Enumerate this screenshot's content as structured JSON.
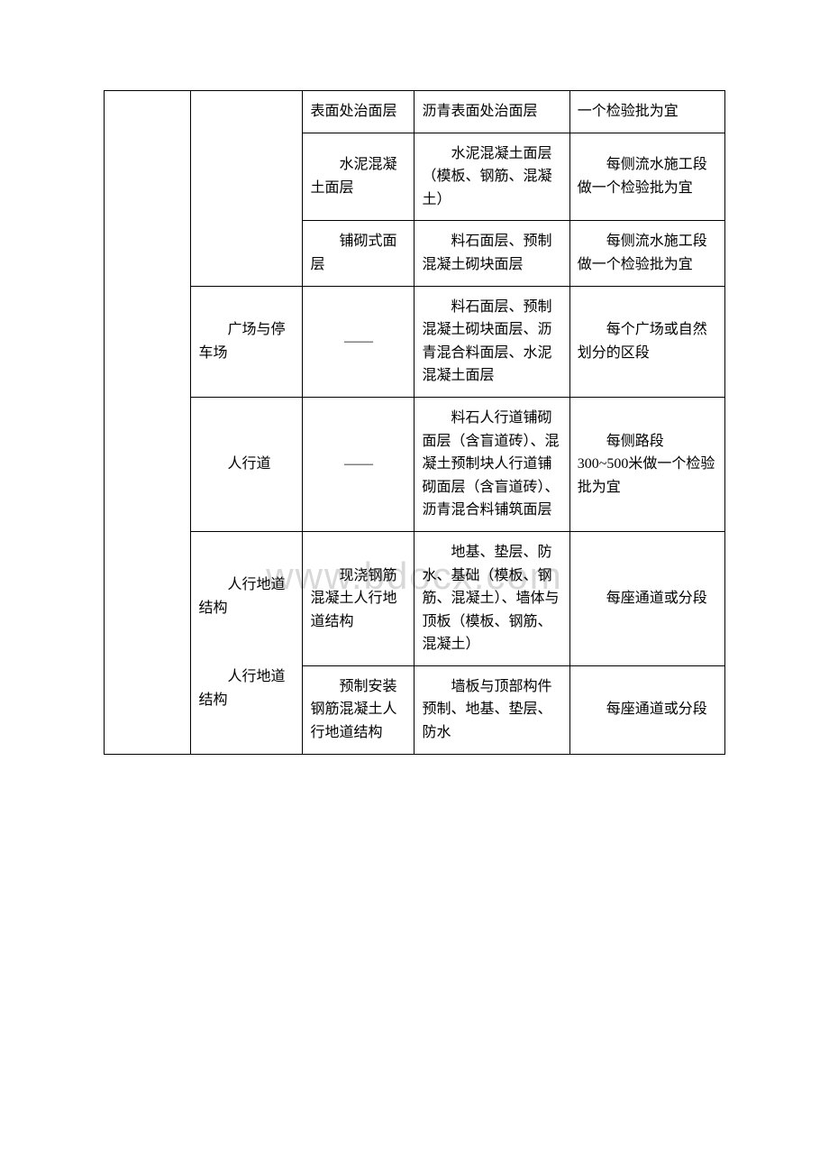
{
  "watermark": "www.bdocx.com",
  "table": {
    "rows": [
      {
        "c1": {
          "text": "",
          "rowspan": 8
        },
        "c2": {
          "text": "",
          "rowspan": 3
        },
        "c3": {
          "text": "表面处治面层"
        },
        "c4": {
          "text": "沥青表面处治面层"
        },
        "c5": {
          "text": "一个检验批为宜"
        }
      },
      {
        "c3": {
          "text": "水泥混凝土面层",
          "indent": true
        },
        "c4": {
          "text": "水泥混凝土面层（模板、钢筋、混凝土）",
          "indent": true
        },
        "c5": {
          "text": "每侧流水施工段做一个检验批为宜",
          "indent": true
        }
      },
      {
        "c3": {
          "text": "铺砌式面层",
          "indent": true
        },
        "c4": {
          "text": "料石面层、预制混凝土砌块面层",
          "indent": true
        },
        "c5": {
          "text": "每侧流水施工段做一个检验批为宜",
          "indent": true
        }
      },
      {
        "c2": {
          "text": "广场与停车场",
          "indent": true
        },
        "c3": {
          "text": "——",
          "dash": true
        },
        "c4": {
          "text": "料石面层、预制混凝土砌块面层、沥青混合料面层、水泥混凝土面层",
          "indent": true
        },
        "c5": {
          "text": "每个广场或自然划分的区段",
          "indent": true
        }
      },
      {
        "c2": {
          "text": "人行道",
          "indent": true
        },
        "c3": {
          "text": "——",
          "dash": true
        },
        "c4": {
          "text": "料石人行道铺砌面层（含盲道砖）、混凝土预制块人行道铺砌面层（含盲道砖）、沥青混合料铺筑面层",
          "indent": true
        },
        "c5": {
          "text": "每侧路段 300~500米做一个检验批为宜",
          "indent": true
        }
      },
      {
        "c2": {
          "text": "人行地道结构",
          "indent": true,
          "rowspan": 3,
          "extra_label": "人行地道结构"
        },
        "c3": {
          "text": "现浇钢筋混凝土人行地道结构",
          "indent": true
        },
        "c4": {
          "text": "地基、垫层、防水、基础（模板、钢筋、混凝土）、墙体与顶板（模板、钢筋、混凝土）",
          "indent": true
        },
        "c5": {
          "text": "每座通道或分段",
          "indent": true
        }
      },
      {
        "c3": {
          "text": "预制安装钢筋混凝土人行地道结构",
          "indent": true
        },
        "c4": {
          "text": "墙板与顶部构件预制、地基、垫层、防水",
          "indent": true
        },
        "c5": {
          "text": "每座通道或分段",
          "indent": true
        }
      }
    ]
  },
  "colors": {
    "border": "#000000",
    "text": "#000000",
    "background": "#ffffff",
    "watermark": "#d8d8d8"
  },
  "typography": {
    "font_family": "SimSun",
    "font_size": 16,
    "line_height": 1.6
  }
}
